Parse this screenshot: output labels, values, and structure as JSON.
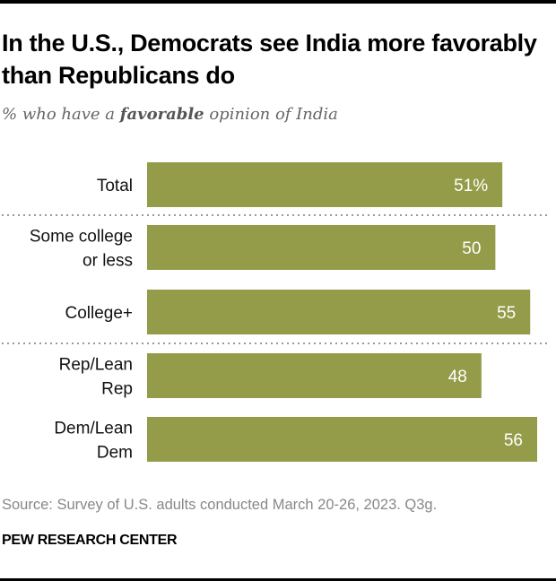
{
  "header": {
    "title": "In the U.S., Democrats see India more favorably than Republicans do",
    "subtitle_pre": "% who have a ",
    "subtitle_bold": "favorable",
    "subtitle_post": " opinion of India"
  },
  "chart_data": {
    "type": "bar",
    "orientation": "horizontal",
    "title": "In the U.S., Democrats see India more favorably than Republicans do",
    "subtitle": "% who have a favorable opinion of India",
    "categories": [
      [
        "Total"
      ],
      [
        "Some college",
        "or less"
      ],
      [
        "College+"
      ],
      [
        "Rep/Lean",
        "Rep"
      ],
      [
        "Dem/Lean",
        "Dem"
      ]
    ],
    "values": [
      51,
      50,
      55,
      48,
      56
    ],
    "value_labels": [
      "51%",
      "50",
      "55",
      "48",
      "56"
    ],
    "groups_separated_after": [
      0,
      2
    ],
    "xlim": [
      0,
      56
    ],
    "grid": false,
    "xlabel": "",
    "ylabel": "",
    "bar_color": "#949c4a"
  },
  "footer": {
    "source": "Source: Survey of U.S. adults conducted March 20-26, 2023. Q3g.",
    "brand": "PEW RESEARCH CENTER"
  }
}
